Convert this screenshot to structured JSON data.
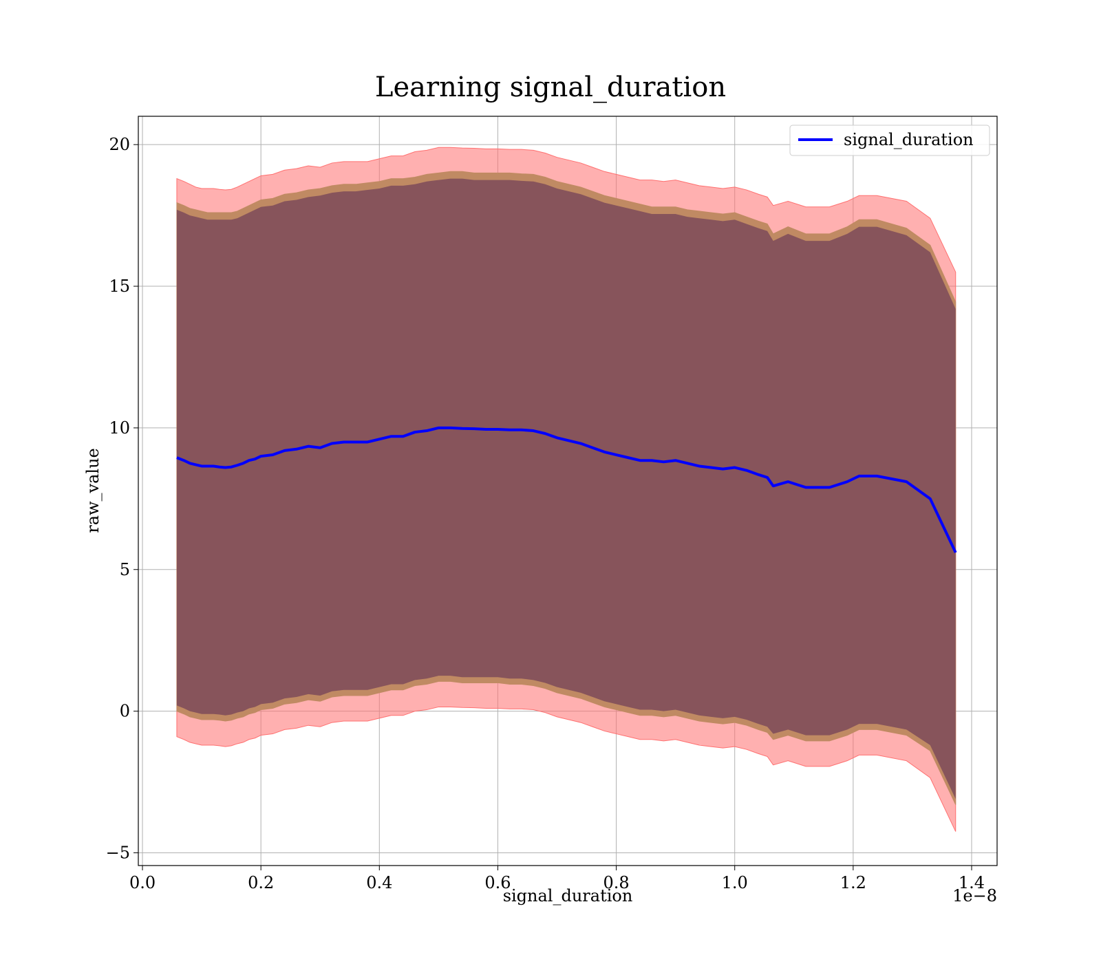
{
  "chart_data": {
    "type": "line",
    "title": "Learning signal_duration",
    "xlabel": "signal_duration",
    "ylabel": "raw_value",
    "x_offset_label": "1e−8",
    "xlim": [
      -0.007,
      1.443
    ],
    "ylim": [
      -5.45,
      21.0
    ],
    "xticks": [
      0.0,
      0.2,
      0.4,
      0.6,
      0.8,
      1.0,
      1.2,
      1.4
    ],
    "xtick_labels": [
      "0.0",
      "0.2",
      "0.4",
      "0.6",
      "0.8",
      "1.0",
      "1.2",
      "1.4"
    ],
    "yticks": [
      -5,
      0,
      5,
      10,
      15,
      20
    ],
    "ytick_labels": [
      "−5",
      "0",
      "5",
      "10",
      "15",
      "20"
    ],
    "grid": true,
    "legend_position": "top-right",
    "series": [
      {
        "name": "signal_duration",
        "color": "#0000ff",
        "x": [
          0.058,
          0.07,
          0.08,
          0.09,
          0.1,
          0.11,
          0.12,
          0.13,
          0.14,
          0.15,
          0.16,
          0.17,
          0.18,
          0.19,
          0.2,
          0.22,
          0.24,
          0.26,
          0.28,
          0.3,
          0.32,
          0.34,
          0.36,
          0.38,
          0.4,
          0.42,
          0.44,
          0.46,
          0.48,
          0.5,
          0.52,
          0.54,
          0.56,
          0.58,
          0.6,
          0.62,
          0.64,
          0.66,
          0.68,
          0.7,
          0.72,
          0.74,
          0.76,
          0.78,
          0.8,
          0.82,
          0.84,
          0.86,
          0.88,
          0.9,
          0.92,
          0.94,
          0.96,
          0.98,
          1.0,
          1.02,
          1.04,
          1.055,
          1.065,
          1.09,
          1.12,
          1.16,
          1.19,
          1.21,
          1.24,
          1.29,
          1.33,
          1.373
        ],
        "mean": [
          8.95,
          8.85,
          8.75,
          8.7,
          8.65,
          8.65,
          8.65,
          8.62,
          8.6,
          8.62,
          8.68,
          8.75,
          8.85,
          8.9,
          9.0,
          9.05,
          9.2,
          9.25,
          9.35,
          9.3,
          9.45,
          9.5,
          9.5,
          9.5,
          9.6,
          9.7,
          9.7,
          9.85,
          9.9,
          10.0,
          10.0,
          9.98,
          9.97,
          9.95,
          9.95,
          9.93,
          9.93,
          9.9,
          9.8,
          9.65,
          9.55,
          9.45,
          9.3,
          9.15,
          9.05,
          8.95,
          8.85,
          8.85,
          8.8,
          8.85,
          8.75,
          8.65,
          8.6,
          8.55,
          8.6,
          8.5,
          8.35,
          8.25,
          7.95,
          8.1,
          7.9,
          7.9,
          8.1,
          8.3,
          8.3,
          8.1,
          7.5,
          5.6
        ],
        "inner_upper": [
          17.7,
          17.6,
          17.5,
          17.45,
          17.4,
          17.35,
          17.35,
          17.35,
          17.35,
          17.35,
          17.4,
          17.5,
          17.6,
          17.7,
          17.8,
          17.85,
          18.0,
          18.05,
          18.15,
          18.2,
          18.3,
          18.35,
          18.35,
          18.4,
          18.45,
          18.55,
          18.55,
          18.6,
          18.7,
          18.75,
          18.8,
          18.8,
          18.75,
          18.75,
          18.75,
          18.75,
          18.72,
          18.7,
          18.6,
          18.45,
          18.35,
          18.25,
          18.1,
          17.95,
          17.85,
          17.75,
          17.65,
          17.55,
          17.55,
          17.55,
          17.45,
          17.4,
          17.35,
          17.3,
          17.35,
          17.2,
          17.05,
          16.95,
          16.6,
          16.85,
          16.6,
          16.6,
          16.85,
          17.1,
          17.1,
          16.8,
          16.2,
          14.2
        ],
        "inner_lower": [
          0.2,
          0.1,
          0.0,
          -0.05,
          -0.1,
          -0.1,
          -0.1,
          -0.12,
          -0.15,
          -0.12,
          -0.05,
          0.0,
          0.1,
          0.15,
          0.25,
          0.3,
          0.45,
          0.5,
          0.6,
          0.55,
          0.7,
          0.75,
          0.75,
          0.75,
          0.85,
          0.95,
          0.95,
          1.1,
          1.15,
          1.25,
          1.25,
          1.2,
          1.2,
          1.2,
          1.2,
          1.15,
          1.15,
          1.1,
          1.0,
          0.85,
          0.75,
          0.65,
          0.5,
          0.35,
          0.25,
          0.15,
          0.05,
          0.05,
          0.0,
          0.05,
          -0.05,
          -0.15,
          -0.2,
          -0.25,
          -0.2,
          -0.3,
          -0.45,
          -0.55,
          -0.8,
          -0.65,
          -0.85,
          -0.85,
          -0.65,
          -0.45,
          -0.45,
          -0.65,
          -1.2,
          -3.1
        ],
        "outer_upper": [
          18.8,
          18.7,
          18.6,
          18.5,
          18.45,
          18.45,
          18.45,
          18.42,
          18.4,
          18.42,
          18.5,
          18.6,
          18.7,
          18.8,
          18.9,
          18.95,
          19.1,
          19.15,
          19.25,
          19.2,
          19.35,
          19.4,
          19.4,
          19.4,
          19.5,
          19.6,
          19.6,
          19.75,
          19.8,
          19.9,
          19.9,
          19.88,
          19.87,
          19.85,
          19.85,
          19.83,
          19.83,
          19.8,
          19.7,
          19.55,
          19.45,
          19.35,
          19.2,
          19.05,
          18.95,
          18.85,
          18.75,
          18.75,
          18.7,
          18.75,
          18.65,
          18.55,
          18.5,
          18.45,
          18.5,
          18.4,
          18.25,
          18.15,
          17.85,
          18.0,
          17.8,
          17.8,
          18.0,
          18.2,
          18.2,
          18.0,
          17.4,
          15.5
        ],
        "outer_lower": [
          -0.9,
          -1.0,
          -1.1,
          -1.15,
          -1.2,
          -1.2,
          -1.2,
          -1.22,
          -1.25,
          -1.22,
          -1.15,
          -1.1,
          -1.0,
          -0.95,
          -0.85,
          -0.8,
          -0.65,
          -0.6,
          -0.5,
          -0.55,
          -0.4,
          -0.35,
          -0.35,
          -0.35,
          -0.25,
          -0.15,
          -0.15,
          0.0,
          0.05,
          0.15,
          0.15,
          0.13,
          0.12,
          0.1,
          0.1,
          0.08,
          0.08,
          0.05,
          -0.05,
          -0.2,
          -0.3,
          -0.4,
          -0.55,
          -0.7,
          -0.8,
          -0.9,
          -1.0,
          -1.0,
          -1.05,
          -1.0,
          -1.1,
          -1.2,
          -1.25,
          -1.3,
          -1.25,
          -1.35,
          -1.5,
          -1.6,
          -1.9,
          -1.75,
          -1.95,
          -1.95,
          -1.75,
          -1.55,
          -1.55,
          -1.75,
          -2.35,
          -4.25
        ]
      }
    ]
  },
  "colors": {
    "line": "#0000ff",
    "outer_band": "#ff6f6f",
    "mid_band": "#c08a63",
    "inner_band": "#7d4a59",
    "grid": "#b0b0b0",
    "axis": "#000000"
  }
}
